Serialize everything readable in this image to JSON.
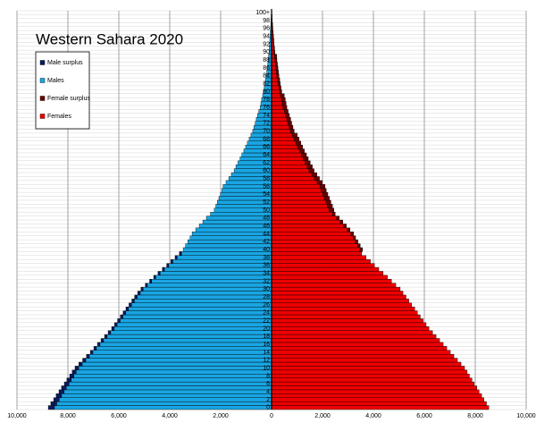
{
  "chart_data": {
    "type": "pyramid",
    "title": "Western Sahara 2020",
    "categories": [
      "0",
      null,
      "2",
      null,
      "4",
      null,
      "6",
      null,
      "8",
      null,
      "10",
      null,
      "12",
      null,
      "14",
      null,
      "16",
      null,
      "18",
      null,
      "20",
      null,
      "22",
      null,
      "24",
      null,
      "26",
      null,
      "28",
      null,
      "30",
      null,
      "32",
      null,
      "34",
      null,
      "36",
      null,
      "38",
      null,
      "40",
      null,
      "42",
      null,
      "44",
      null,
      "46",
      null,
      "48",
      null,
      "50",
      null,
      "52",
      null,
      "54",
      null,
      "56",
      null,
      "58",
      null,
      "60",
      null,
      "62",
      null,
      "64",
      null,
      "66",
      null,
      "68",
      null,
      "70",
      null,
      "72",
      null,
      "74",
      null,
      "76",
      null,
      "78",
      null,
      "80",
      null,
      "82",
      null,
      "84",
      null,
      "86",
      null,
      "88",
      null,
      "90",
      null,
      "92",
      null,
      "94",
      null,
      "96",
      null,
      "98",
      null,
      "100+"
    ],
    "series": [
      {
        "name": "Male surplus",
        "color": "#0b1b5e",
        "values": [
          240,
          230,
          220,
          210,
          200,
          190,
          180,
          170,
          160,
          150,
          140,
          130,
          120,
          110,
          100,
          100,
          100,
          100,
          100,
          100,
          100,
          100,
          100,
          100,
          100,
          100,
          100,
          100,
          100,
          100,
          80,
          80,
          80,
          80,
          80,
          80,
          80,
          80,
          80,
          80,
          0,
          0,
          0,
          0,
          0,
          0,
          0,
          0,
          0,
          0,
          0,
          0,
          0,
          0,
          0,
          0,
          0,
          0,
          0,
          0,
          0,
          0,
          0,
          0,
          0,
          0,
          0,
          0,
          0,
          0,
          0,
          0,
          0,
          0,
          0,
          0,
          0,
          0,
          0,
          0,
          0,
          0,
          0,
          0,
          0,
          0,
          0,
          0,
          0,
          0,
          0,
          0,
          0,
          0,
          0,
          0,
          0,
          0,
          0,
          0,
          0
        ]
      },
      {
        "name": "Males",
        "color": "#19a5e3",
        "values": [
          8530,
          8440,
          8340,
          8250,
          8150,
          8060,
          7960,
          7870,
          7770,
          7680,
          7580,
          7440,
          7300,
          7160,
          7020,
          6880,
          6740,
          6600,
          6460,
          6320,
          6180,
          6070,
          5950,
          5840,
          5730,
          5620,
          5500,
          5390,
          5280,
          5160,
          5050,
          4880,
          4710,
          4550,
          4380,
          4210,
          4040,
          3880,
          3710,
          3540,
          3470,
          3380,
          3290,
          3200,
          3120,
          2980,
          2840,
          2700,
          2560,
          2400,
          2250,
          2190,
          2130,
          2070,
          2010,
          1950,
          1900,
          1790,
          1680,
          1580,
          1470,
          1400,
          1320,
          1240,
          1170,
          1090,
          1020,
          950,
          880,
          810,
          740,
          690,
          640,
          600,
          550,
          500,
          450,
          420,
          390,
          350,
          320,
          290,
          260,
          240,
          210,
          190,
          170,
          150,
          130,
          120,
          100,
          90,
          80,
          70,
          60,
          50,
          40,
          30,
          20,
          15,
          10
        ]
      },
      {
        "name": "Female surplus",
        "color": "#6b0000",
        "values": [
          0,
          0,
          0,
          0,
          0,
          0,
          0,
          0,
          0,
          0,
          0,
          0,
          0,
          0,
          0,
          0,
          0,
          0,
          0,
          0,
          0,
          0,
          0,
          0,
          0,
          0,
          0,
          0,
          0,
          0,
          0,
          0,
          0,
          0,
          0,
          0,
          0,
          0,
          0,
          0,
          100,
          100,
          100,
          100,
          100,
          100,
          100,
          100,
          100,
          100,
          200,
          200,
          200,
          200,
          200,
          200,
          200,
          200,
          200,
          200,
          200,
          200,
          200,
          200,
          200,
          200,
          200,
          200,
          200,
          200,
          150,
          150,
          150,
          150,
          150,
          150,
          150,
          150,
          150,
          150,
          80,
          80,
          80,
          80,
          80,
          80,
          80,
          80,
          80,
          80,
          30,
          30,
          20,
          20,
          20,
          10,
          10,
          10,
          5,
          5,
          5
        ]
      },
      {
        "name": "Females",
        "color": "#ee0000",
        "values": [
          8530,
          8440,
          8340,
          8250,
          8150,
          8060,
          7960,
          7870,
          7770,
          7680,
          7580,
          7440,
          7300,
          7160,
          7020,
          6880,
          6740,
          6600,
          6460,
          6320,
          6180,
          6070,
          5950,
          5840,
          5730,
          5620,
          5500,
          5390,
          5280,
          5160,
          5050,
          4880,
          4710,
          4550,
          4380,
          4210,
          4040,
          3880,
          3710,
          3540,
          3470,
          3380,
          3290,
          3200,
          3120,
          2980,
          2840,
          2700,
          2560,
          2400,
          2250,
          2190,
          2130,
          2070,
          2010,
          1950,
          1900,
          1790,
          1680,
          1580,
          1470,
          1400,
          1320,
          1240,
          1170,
          1090,
          1020,
          950,
          880,
          810,
          740,
          690,
          640,
          600,
          550,
          500,
          450,
          420,
          390,
          350,
          320,
          290,
          260,
          240,
          210,
          190,
          170,
          150,
          130,
          120,
          100,
          90,
          80,
          70,
          60,
          50,
          40,
          30,
          20,
          15,
          10
        ]
      }
    ],
    "xlim": [
      -10000,
      10000
    ],
    "xticks": [
      {
        "value": -10000,
        "label": "10,000"
      },
      {
        "value": -8000,
        "label": "8,000"
      },
      {
        "value": -6000,
        "label": "6,000"
      },
      {
        "value": -4000,
        "label": "4,000"
      },
      {
        "value": -2000,
        "label": "2,000"
      },
      0,
      {
        "value": 2000,
        "label": "2,000"
      },
      {
        "value": 4000,
        "label": "4,000"
      },
      {
        "value": 6000,
        "label": "6,000"
      },
      {
        "value": 8000,
        "label": "8,000"
      },
      {
        "value": 10000,
        "label": "10,000"
      }
    ],
    "grid": true
  }
}
